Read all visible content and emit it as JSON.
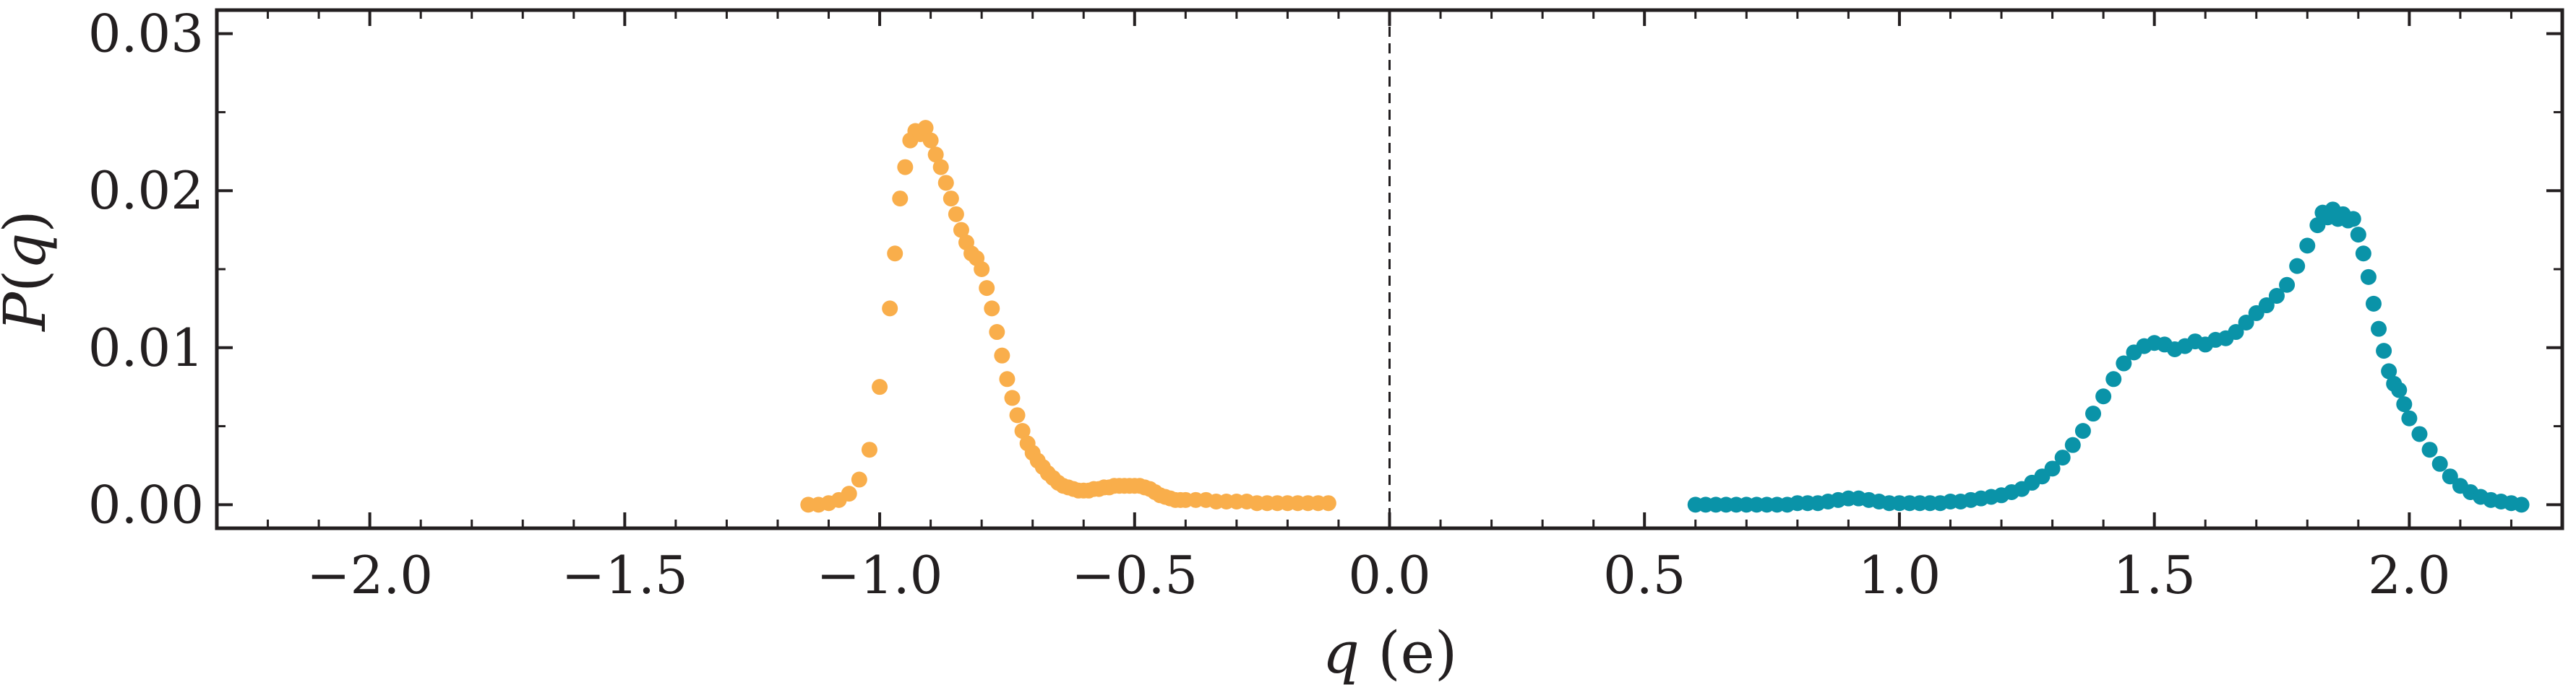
{
  "chart_data": {
    "type": "scatter",
    "title": "",
    "xlabel": "q (e)",
    "ylabel": "P(q)",
    "xlim": [
      -2.3,
      2.3
    ],
    "ylim": [
      -0.0015,
      0.0315
    ],
    "x_ticks": [
      -2.0,
      -1.5,
      -1.0,
      -0.5,
      0.0,
      0.5,
      1.0,
      1.5,
      2.0
    ],
    "x_tick_labels": [
      "−2.0",
      "−1.5",
      "−1.0",
      "−0.5",
      "0.0",
      "0.5",
      "1.0",
      "1.5",
      "2.0"
    ],
    "y_ticks": [
      0.0,
      0.01,
      0.02,
      0.03
    ],
    "y_tick_labels": [
      "0.00",
      "0.01",
      "0.02",
      "0.03"
    ],
    "grid": false,
    "legend": "none",
    "reference_line": {
      "x": 0.0,
      "style": "dashed",
      "color": "#231f20"
    },
    "colors": {
      "series_1": "#f9ae4b",
      "series_2": "#0a93a8",
      "axes": "#231f20"
    },
    "series": [
      {
        "color": "#f9ae4b",
        "points": [
          [
            -1.14,
            0.0
          ],
          [
            -1.12,
            0.0
          ],
          [
            -1.1,
            0.0001
          ],
          [
            -1.08,
            0.0003
          ],
          [
            -1.06,
            0.0007
          ],
          [
            -1.04,
            0.0016
          ],
          [
            -1.02,
            0.0035
          ],
          [
            -1.0,
            0.0075
          ],
          [
            -0.98,
            0.0125
          ],
          [
            -0.97,
            0.016
          ],
          [
            -0.96,
            0.0195
          ],
          [
            -0.95,
            0.0215
          ],
          [
            -0.94,
            0.0232
          ],
          [
            -0.93,
            0.0238
          ],
          [
            -0.92,
            0.0236
          ],
          [
            -0.91,
            0.024
          ],
          [
            -0.9,
            0.0232
          ],
          [
            -0.89,
            0.0223
          ],
          [
            -0.88,
            0.0215
          ],
          [
            -0.87,
            0.0205
          ],
          [
            -0.86,
            0.0195
          ],
          [
            -0.85,
            0.0185
          ],
          [
            -0.84,
            0.0175
          ],
          [
            -0.83,
            0.0167
          ],
          [
            -0.82,
            0.016
          ],
          [
            -0.81,
            0.0157
          ],
          [
            -0.8,
            0.015
          ],
          [
            -0.79,
            0.0138
          ],
          [
            -0.78,
            0.0125
          ],
          [
            -0.77,
            0.011
          ],
          [
            -0.76,
            0.0095
          ],
          [
            -0.75,
            0.008
          ],
          [
            -0.74,
            0.0068
          ],
          [
            -0.73,
            0.0057
          ],
          [
            -0.72,
            0.0047
          ],
          [
            -0.71,
            0.0039
          ],
          [
            -0.7,
            0.0033
          ],
          [
            -0.69,
            0.0028
          ],
          [
            -0.68,
            0.0024
          ],
          [
            -0.67,
            0.002
          ],
          [
            -0.66,
            0.0017
          ],
          [
            -0.65,
            0.0014
          ],
          [
            -0.64,
            0.0012
          ],
          [
            -0.63,
            0.0011
          ],
          [
            -0.62,
            0.001
          ],
          [
            -0.61,
            0.0009
          ],
          [
            -0.6,
            0.0009
          ],
          [
            -0.59,
            0.0009
          ],
          [
            -0.58,
            0.001
          ],
          [
            -0.57,
            0.001
          ],
          [
            -0.56,
            0.0011
          ],
          [
            -0.55,
            0.0011
          ],
          [
            -0.54,
            0.0012
          ],
          [
            -0.53,
            0.0012
          ],
          [
            -0.52,
            0.0012
          ],
          [
            -0.51,
            0.0012
          ],
          [
            -0.5,
            0.0012
          ],
          [
            -0.49,
            0.0012
          ],
          [
            -0.48,
            0.0011
          ],
          [
            -0.47,
            0.001
          ],
          [
            -0.46,
            0.0008
          ],
          [
            -0.45,
            0.0006
          ],
          [
            -0.44,
            0.0005
          ],
          [
            -0.43,
            0.0004
          ],
          [
            -0.42,
            0.0003
          ],
          [
            -0.41,
            0.0003
          ],
          [
            -0.4,
            0.0003
          ],
          [
            -0.38,
            0.0003
          ],
          [
            -0.36,
            0.0003
          ],
          [
            -0.34,
            0.0002
          ],
          [
            -0.32,
            0.0002
          ],
          [
            -0.3,
            0.0002
          ],
          [
            -0.28,
            0.0002
          ],
          [
            -0.26,
            0.0001
          ],
          [
            -0.24,
            0.0001
          ],
          [
            -0.22,
            0.0001
          ],
          [
            -0.2,
            0.0001
          ],
          [
            -0.18,
            0.0001
          ],
          [
            -0.16,
            0.0001
          ],
          [
            -0.14,
            0.0001
          ],
          [
            -0.12,
            0.0001
          ]
        ]
      },
      {
        "color": "#0a93a8",
        "points": [
          [
            0.6,
            0.0
          ],
          [
            0.62,
            0.0
          ],
          [
            0.64,
            0.0
          ],
          [
            0.66,
            0.0
          ],
          [
            0.68,
            0.0
          ],
          [
            0.7,
            0.0
          ],
          [
            0.72,
            0.0
          ],
          [
            0.74,
            0.0
          ],
          [
            0.76,
            0.0
          ],
          [
            0.78,
            0.0
          ],
          [
            0.8,
            0.0001
          ],
          [
            0.82,
            0.0001
          ],
          [
            0.84,
            0.0001
          ],
          [
            0.86,
            0.0002
          ],
          [
            0.88,
            0.0003
          ],
          [
            0.9,
            0.0004
          ],
          [
            0.92,
            0.0004
          ],
          [
            0.94,
            0.0003
          ],
          [
            0.96,
            0.0002
          ],
          [
            0.98,
            0.0001
          ],
          [
            1.0,
            0.0001
          ],
          [
            1.02,
            0.0001
          ],
          [
            1.04,
            0.0001
          ],
          [
            1.06,
            0.0001
          ],
          [
            1.08,
            0.0001
          ],
          [
            1.1,
            0.0002
          ],
          [
            1.12,
            0.0002
          ],
          [
            1.14,
            0.0003
          ],
          [
            1.16,
            0.0004
          ],
          [
            1.18,
            0.0005
          ],
          [
            1.2,
            0.0006
          ],
          [
            1.22,
            0.0008
          ],
          [
            1.24,
            0.001
          ],
          [
            1.26,
            0.0014
          ],
          [
            1.28,
            0.0018
          ],
          [
            1.3,
            0.0023
          ],
          [
            1.32,
            0.003
          ],
          [
            1.34,
            0.0038
          ],
          [
            1.36,
            0.0047
          ],
          [
            1.38,
            0.0058
          ],
          [
            1.4,
            0.0069
          ],
          [
            1.42,
            0.008
          ],
          [
            1.44,
            0.009
          ],
          [
            1.46,
            0.0097
          ],
          [
            1.48,
            0.0101
          ],
          [
            1.5,
            0.0103
          ],
          [
            1.52,
            0.0102
          ],
          [
            1.54,
            0.0099
          ],
          [
            1.56,
            0.0101
          ],
          [
            1.58,
            0.0104
          ],
          [
            1.6,
            0.0102
          ],
          [
            1.62,
            0.0105
          ],
          [
            1.64,
            0.0106
          ],
          [
            1.66,
            0.011
          ],
          [
            1.68,
            0.0116
          ],
          [
            1.7,
            0.0122
          ],
          [
            1.72,
            0.0127
          ],
          [
            1.74,
            0.0133
          ],
          [
            1.76,
            0.014
          ],
          [
            1.78,
            0.0152
          ],
          [
            1.8,
            0.0165
          ],
          [
            1.82,
            0.0178
          ],
          [
            1.83,
            0.0186
          ],
          [
            1.84,
            0.0183
          ],
          [
            1.85,
            0.0188
          ],
          [
            1.86,
            0.0182
          ],
          [
            1.87,
            0.0185
          ],
          [
            1.88,
            0.0181
          ],
          [
            1.89,
            0.0182
          ],
          [
            1.9,
            0.0172
          ],
          [
            1.91,
            0.016
          ],
          [
            1.92,
            0.0145
          ],
          [
            1.93,
            0.0128
          ],
          [
            1.94,
            0.0112
          ],
          [
            1.95,
            0.0098
          ],
          [
            1.96,
            0.0085
          ],
          [
            1.97,
            0.0077
          ],
          [
            1.98,
            0.0073
          ],
          [
            1.99,
            0.0064
          ],
          [
            2.0,
            0.0055
          ],
          [
            2.02,
            0.0045
          ],
          [
            2.04,
            0.0035
          ],
          [
            2.06,
            0.0026
          ],
          [
            2.08,
            0.0018
          ],
          [
            2.1,
            0.0012
          ],
          [
            2.12,
            0.0008
          ],
          [
            2.14,
            0.0005
          ],
          [
            2.16,
            0.0003
          ],
          [
            2.18,
            0.0002
          ],
          [
            2.2,
            0.0001
          ],
          [
            2.22,
            0.0
          ]
        ]
      }
    ]
  }
}
